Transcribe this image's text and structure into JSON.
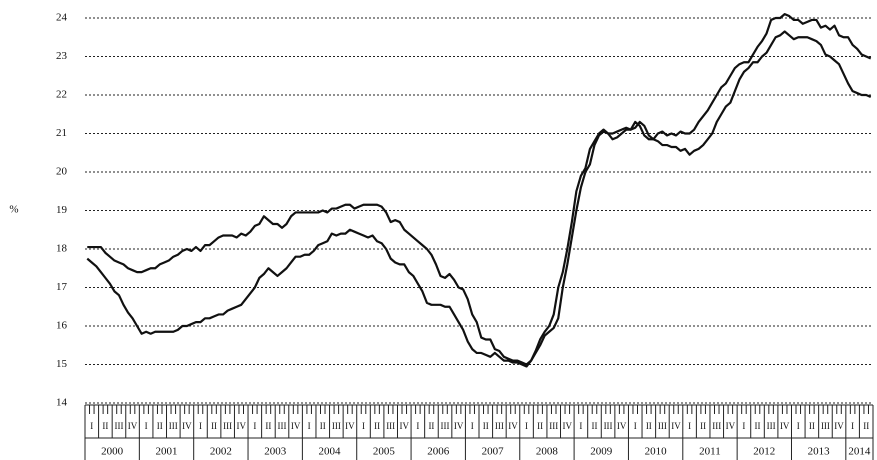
{
  "chart_data": {
    "type": "line",
    "y_label": "%",
    "ylim": [
      14,
      24
    ],
    "yticks": [
      14,
      15,
      16,
      17,
      18,
      19,
      20,
      21,
      22,
      23,
      24
    ],
    "grid": true,
    "years": [
      "2000",
      "2001",
      "2002",
      "2003",
      "2004",
      "2005",
      "2006",
      "2007",
      "2008",
      "2009",
      "2010",
      "2011",
      "2012",
      "2013",
      "2014"
    ],
    "quarters": [
      "I",
      "II",
      "III",
      "IV",
      "I",
      "II",
      "III",
      "IV",
      "I",
      "II",
      "III",
      "IV",
      "I",
      "II",
      "III",
      "IV",
      "I",
      "II",
      "III",
      "IV",
      "I",
      "II",
      "III",
      "IV",
      "I",
      "II",
      "III",
      "IV",
      "I",
      "II",
      "III",
      "IV",
      "I",
      "II",
      "III",
      "IV",
      "I",
      "II",
      "III",
      "IV",
      "I",
      "II",
      "III",
      "IV",
      "I",
      "II",
      "III",
      "IV",
      "I",
      "II",
      "III",
      "IV",
      "I",
      "II",
      "III",
      "IV",
      "I",
      "II"
    ],
    "series": [
      {
        "color": "#111111",
        "values": [
          18.05,
          18.05,
          18.05,
          18.05,
          17.9,
          17.8,
          17.7,
          17.65,
          17.6,
          17.5,
          17.45,
          17.4,
          17.4,
          17.45,
          17.5,
          17.5,
          17.6,
          17.65,
          17.7,
          17.8,
          17.85,
          17.95,
          18.0,
          17.95,
          18.05,
          17.95,
          18.1,
          18.1,
          18.2,
          18.3,
          18.35,
          18.35,
          18.35,
          18.3,
          18.4,
          18.35,
          18.45,
          18.6,
          18.65,
          18.85,
          18.75,
          18.65,
          18.65,
          18.55,
          18.65,
          18.85,
          18.95,
          18.95,
          18.95,
          18.95,
          18.95,
          18.95,
          19.0,
          18.95,
          19.05,
          19.05,
          19.1,
          19.15,
          19.15,
          19.05,
          19.1,
          19.15,
          19.15,
          19.15,
          19.15,
          19.1,
          18.95,
          18.7,
          18.75,
          18.7,
          18.5,
          18.4,
          18.3,
          18.2,
          18.1,
          18.0,
          17.85,
          17.6,
          17.3,
          17.25,
          17.35,
          17.2,
          17.0,
          16.95,
          16.7,
          16.3,
          16.1,
          15.7,
          15.65,
          15.65,
          15.4,
          15.35,
          15.2,
          15.15,
          15.1,
          15.1,
          15.05,
          15.0,
          15.1,
          15.3,
          15.5,
          15.75,
          15.85,
          15.95,
          16.2,
          17.0,
          17.6,
          18.3,
          19.0,
          19.6,
          20.0,
          20.2,
          20.7,
          20.95,
          21.05,
          21.0,
          21.0,
          21.05,
          21.1,
          21.15,
          21.1,
          21.15,
          21.3,
          21.2,
          20.95,
          20.85,
          21.0,
          21.05,
          20.95,
          21.0,
          20.95,
          21.05,
          21.0,
          21.0,
          21.1,
          21.3,
          21.45,
          21.6,
          21.8,
          22.0,
          22.2,
          22.3,
          22.5,
          22.7,
          22.8,
          22.85,
          22.85,
          23.05,
          23.25,
          23.4,
          23.6,
          23.95,
          24.0,
          24.0,
          24.1,
          24.05,
          23.95,
          23.95,
          23.85,
          23.9,
          23.95,
          23.95,
          23.75,
          23.8,
          23.7,
          23.8,
          23.55,
          23.5,
          23.5,
          23.3,
          23.2,
          23.05,
          23.0,
          22.95
        ]
      },
      {
        "color": "#111111",
        "values": [
          17.75,
          17.65,
          17.55,
          17.4,
          17.25,
          17.1,
          16.9,
          16.8,
          16.55,
          16.35,
          16.2,
          16.0,
          15.8,
          15.85,
          15.8,
          15.85,
          15.85,
          15.85,
          15.85,
          15.85,
          15.9,
          16.0,
          16.0,
          16.05,
          16.1,
          16.1,
          16.2,
          16.2,
          16.25,
          16.3,
          16.3,
          16.4,
          16.45,
          16.5,
          16.55,
          16.7,
          16.85,
          17.0,
          17.25,
          17.35,
          17.5,
          17.4,
          17.3,
          17.4,
          17.5,
          17.65,
          17.8,
          17.8,
          17.85,
          17.85,
          17.95,
          18.1,
          18.15,
          18.2,
          18.4,
          18.35,
          18.4,
          18.4,
          18.5,
          18.45,
          18.4,
          18.35,
          18.3,
          18.35,
          18.2,
          18.15,
          18.0,
          17.75,
          17.65,
          17.6,
          17.6,
          17.4,
          17.3,
          17.1,
          16.9,
          16.6,
          16.55,
          16.55,
          16.55,
          16.5,
          16.5,
          16.3,
          16.1,
          15.9,
          15.6,
          15.4,
          15.3,
          15.3,
          15.25,
          15.2,
          15.3,
          15.2,
          15.1,
          15.1,
          15.05,
          15.05,
          15.0,
          14.95,
          15.1,
          15.35,
          15.65,
          15.85,
          16.0,
          16.3,
          17.0,
          17.4,
          18.0,
          18.7,
          19.5,
          19.9,
          20.1,
          20.6,
          20.8,
          21.0,
          21.1,
          21.0,
          20.85,
          20.9,
          21.0,
          21.1,
          21.1,
          21.3,
          21.2,
          20.95,
          20.85,
          20.85,
          20.8,
          20.7,
          20.7,
          20.65,
          20.65,
          20.55,
          20.6,
          20.45,
          20.55,
          20.6,
          20.7,
          20.85,
          21.0,
          21.3,
          21.5,
          21.7,
          21.8,
          22.1,
          22.4,
          22.6,
          22.7,
          22.85,
          22.85,
          23.0,
          23.1,
          23.3,
          23.5,
          23.55,
          23.65,
          23.55,
          23.45,
          23.5,
          23.5,
          23.5,
          23.45,
          23.4,
          23.3,
          23.05,
          23.0,
          22.9,
          22.8,
          22.55,
          22.3,
          22.1,
          22.05,
          22.0,
          22.0,
          21.95
        ]
      }
    ]
  }
}
